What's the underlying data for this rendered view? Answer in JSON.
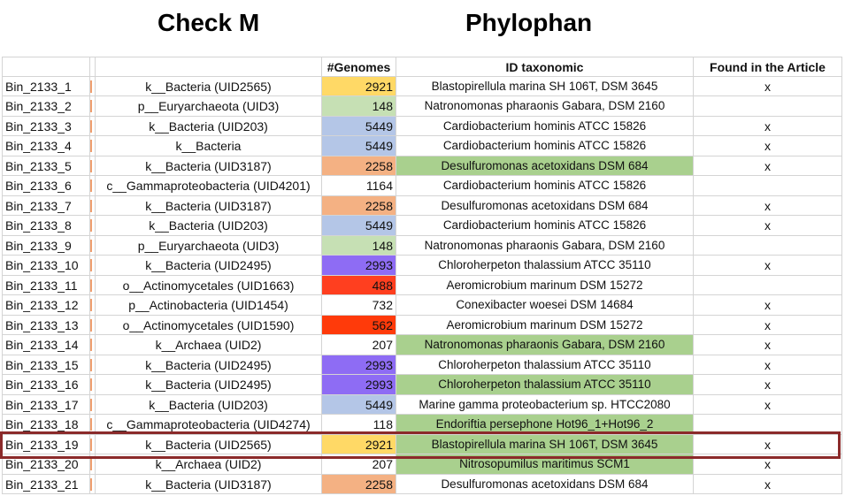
{
  "headings": {
    "checkm": "Check M",
    "phylophan": "Phylophan"
  },
  "columns": {
    "bin": "",
    "lineage": "",
    "genomes": "#Genomes",
    "id": "ID taxonomic",
    "found": "Found in the Article"
  },
  "colors": {
    "highlight_border": "#8b2a2a",
    "green_fill": "#a9d08e",
    "grid": "#d4d4d4"
  },
  "rows": [
    {
      "bin": "Bin_2133_1",
      "lineage": "k__Bacteria (UID2565)",
      "genomes": "2921",
      "genome_color": "#ffd966",
      "id": "Blastopirellula marina SH 106T, DSM 3645",
      "id_green": false,
      "found": "x"
    },
    {
      "bin": "Bin_2133_2",
      "lineage": "p__Euryarchaeota (UID3)",
      "genomes": "148",
      "genome_color": "#c6e0b4",
      "id": "Natronomonas pharaonis Gabara, DSM 2160",
      "id_green": false,
      "found": ""
    },
    {
      "bin": "Bin_2133_3",
      "lineage": "k__Bacteria (UID203)",
      "genomes": "5449",
      "genome_color": "#b4c6e7",
      "id": "Cardiobacterium hominis ATCC 15826",
      "id_green": false,
      "found": "x"
    },
    {
      "bin": "Bin_2133_4",
      "lineage": "k__Bacteria",
      "genomes": "5449",
      "genome_color": "#b4c6e7",
      "id": "Cardiobacterium hominis ATCC 15826",
      "id_green": false,
      "found": "x"
    },
    {
      "bin": "Bin_2133_5",
      "lineage": "k__Bacteria (UID3187)",
      "genomes": "2258",
      "genome_color": "#f4b183",
      "id": "Desulfuromonas acetoxidans DSM 684",
      "id_green": true,
      "found": "x"
    },
    {
      "bin": "Bin_2133_6",
      "lineage": "c__Gammaproteobacteria (UID4201)",
      "genomes": "1164",
      "genome_color": "#ffffff",
      "id": "Cardiobacterium hominis ATCC 15826",
      "id_green": false,
      "found": ""
    },
    {
      "bin": "Bin_2133_7",
      "lineage": "k__Bacteria (UID3187)",
      "genomes": "2258",
      "genome_color": "#f4b183",
      "id": "Desulfuromonas acetoxidans DSM 684",
      "id_green": false,
      "found": "x"
    },
    {
      "bin": "Bin_2133_8",
      "lineage": "k__Bacteria (UID203)",
      "genomes": "5449",
      "genome_color": "#b4c6e7",
      "id": "Cardiobacterium hominis ATCC 15826",
      "id_green": false,
      "found": "x"
    },
    {
      "bin": "Bin_2133_9",
      "lineage": "p__Euryarchaeota (UID3)",
      "genomes": "148",
      "genome_color": "#c6e0b4",
      "id": "Natronomonas pharaonis Gabara, DSM 2160",
      "id_green": false,
      "found": ""
    },
    {
      "bin": "Bin_2133_10",
      "lineage": "k__Bacteria (UID2495)",
      "genomes": "2993",
      "genome_color": "#8e6cf4",
      "id": "Chloroherpeton thalassium ATCC 35110",
      "id_green": false,
      "found": "x"
    },
    {
      "bin": "Bin_2133_11",
      "lineage": "o__Actinomycetales (UID1663)",
      "genomes": "488",
      "genome_color": "#ff3f1f",
      "id": "Aeromicrobium marinum DSM 15272",
      "id_green": false,
      "found": ""
    },
    {
      "bin": "Bin_2133_12",
      "lineage": "p__Actinobacteria (UID1454)",
      "genomes": "732",
      "genome_color": "#ffffff",
      "id": "Conexibacter woesei DSM 14684",
      "id_green": false,
      "found": "x"
    },
    {
      "bin": "Bin_2133_13",
      "lineage": "o__Actinomycetales (UID1590)",
      "genomes": "562",
      "genome_color": "#ff3a0a",
      "id": "Aeromicrobium marinum DSM 15272",
      "id_green": false,
      "found": "x"
    },
    {
      "bin": "Bin_2133_14",
      "lineage": "k__Archaea (UID2)",
      "genomes": "207",
      "genome_color": "#ffffff",
      "id": "Natronomonas pharaonis Gabara, DSM 2160",
      "id_green": true,
      "found": "x"
    },
    {
      "bin": "Bin_2133_15",
      "lineage": "k__Bacteria (UID2495)",
      "genomes": "2993",
      "genome_color": "#8e6cf4",
      "id": "Chloroherpeton thalassium ATCC 35110",
      "id_green": false,
      "found": "x"
    },
    {
      "bin": "Bin_2133_16",
      "lineage": "k__Bacteria (UID2495)",
      "genomes": "2993",
      "genome_color": "#8e6cf4",
      "id": "Chloroherpeton thalassium ATCC 35110",
      "id_green": true,
      "found": "x"
    },
    {
      "bin": "Bin_2133_17",
      "lineage": "k__Bacteria (UID203)",
      "genomes": "5449",
      "genome_color": "#b4c6e7",
      "id": "Marine gamma proteobacterium sp. HTCC2080",
      "id_green": false,
      "found": "x"
    },
    {
      "bin": "Bin_2133_18",
      "lineage": "c__Gammaproteobacteria (UID4274)",
      "genomes": "118",
      "genome_color": "#ffffff",
      "id": "Endoriftia persephone Hot96_1+Hot96_2",
      "id_green": true,
      "found": ""
    },
    {
      "bin": "Bin_2133_19",
      "lineage": "k__Bacteria (UID2565)",
      "genomes": "2921",
      "genome_color": "#ffd966",
      "id": "Blastopirellula marina SH 106T, DSM 3645",
      "id_green": true,
      "found": "x"
    },
    {
      "bin": "Bin_2133_20",
      "lineage": "k__Archaea (UID2)",
      "genomes": "207",
      "genome_color": "#ffffff",
      "id": "Nitrosopumilus maritimus SCM1",
      "id_green": true,
      "found": "x"
    },
    {
      "bin": "Bin_2133_21",
      "lineage": "k__Bacteria (UID3187)",
      "genomes": "2258",
      "genome_color": "#f4b183",
      "id": "Desulfuromonas acetoxidans DSM 684",
      "id_green": false,
      "found": "x"
    }
  ]
}
